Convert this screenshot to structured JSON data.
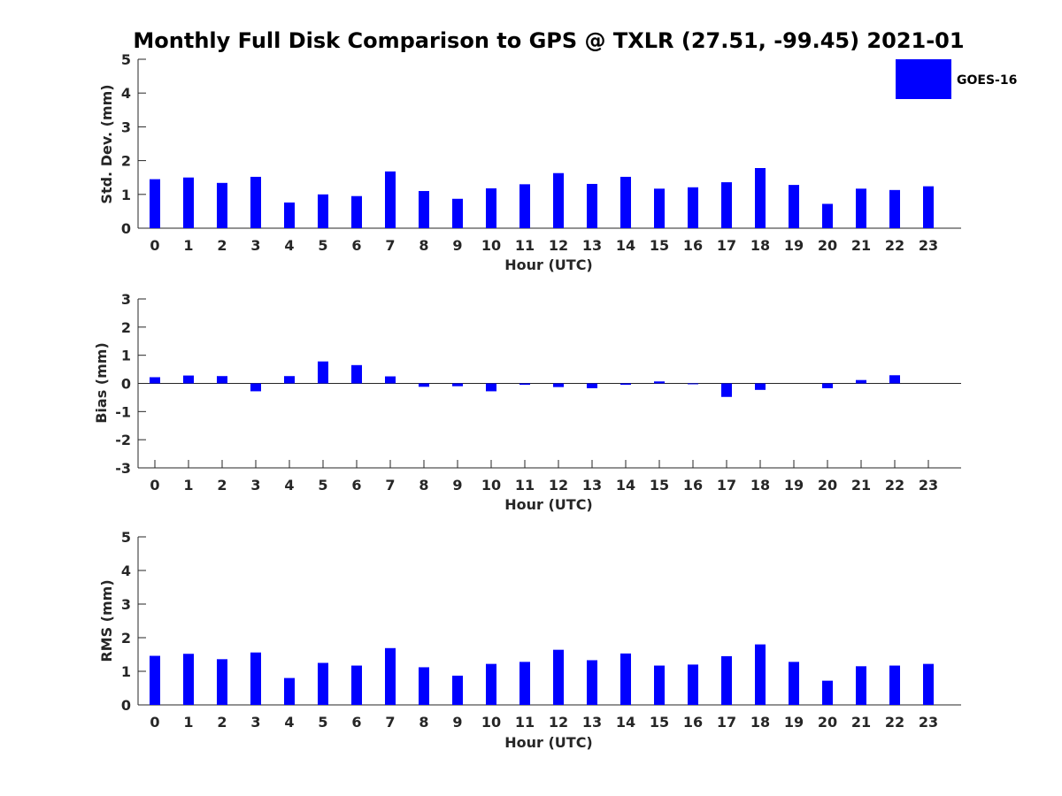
{
  "chart_data": {
    "title": "Monthly Full Disk Comparison to GPS @ TXLR (27.51, -99.45) 2021-01",
    "legend": {
      "entries": [
        "GOES-16"
      ],
      "placement": "top-right",
      "color": "#0000ff"
    },
    "bar_color": "#0000ff",
    "panels": [
      {
        "type": "bar",
        "xlabel": "Hour (UTC)",
        "ylabel": "Std. Dev. (mm)",
        "ylim": [
          0,
          5
        ],
        "yticks": [
          "0",
          "1",
          "2",
          "3",
          "4",
          "5"
        ],
        "grid": false,
        "categories": [
          "0",
          "1",
          "2",
          "3",
          "4",
          "5",
          "6",
          "7",
          "8",
          "9",
          "10",
          "11",
          "12",
          "13",
          "14",
          "15",
          "16",
          "17",
          "18",
          "19",
          "20",
          "21",
          "22",
          "23"
        ],
        "series": [
          {
            "name": "GOES-16",
            "values": [
              1.45,
              1.5,
              1.34,
              1.52,
              0.76,
              1.0,
              0.95,
              1.68,
              1.1,
              0.87,
              1.18,
              1.3,
              1.63,
              1.31,
              1.52,
              1.17,
              1.21,
              1.36,
              1.78,
              1.28,
              0.72,
              1.17,
              1.13,
              1.24
            ]
          }
        ]
      },
      {
        "type": "bar",
        "xlabel": "Hour (UTC)",
        "ylabel": "Bias (mm)",
        "ylim": [
          -3,
          3
        ],
        "yticks": [
          "-3",
          "-2",
          "-1",
          "0",
          "1",
          "2",
          "3"
        ],
        "grid": false,
        "categories": [
          "0",
          "1",
          "2",
          "3",
          "4",
          "5",
          "6",
          "7",
          "8",
          "9",
          "10",
          "11",
          "12",
          "13",
          "14",
          "15",
          "16",
          "17",
          "18",
          "19",
          "20",
          "21",
          "22",
          "23"
        ],
        "series": [
          {
            "name": "GOES-16",
            "values": [
              0.22,
              0.28,
              0.26,
              -0.28,
              0.26,
              0.78,
              0.65,
              0.25,
              -0.12,
              -0.1,
              -0.28,
              -0.05,
              -0.13,
              -0.17,
              -0.05,
              0.07,
              -0.01,
              -0.48,
              -0.23,
              0.0,
              -0.17,
              0.12,
              0.29,
              0.0
            ]
          }
        ]
      },
      {
        "type": "bar",
        "xlabel": "Hour (UTC)",
        "ylabel": "RMS (mm)",
        "ylim": [
          0,
          5
        ],
        "yticks": [
          "0",
          "1",
          "2",
          "3",
          "4",
          "5"
        ],
        "grid": false,
        "categories": [
          "0",
          "1",
          "2",
          "3",
          "4",
          "5",
          "6",
          "7",
          "8",
          "9",
          "10",
          "11",
          "12",
          "13",
          "14",
          "15",
          "16",
          "17",
          "18",
          "19",
          "20",
          "21",
          "22",
          "23"
        ],
        "series": [
          {
            "name": "GOES-16",
            "values": [
              1.46,
              1.52,
              1.36,
              1.56,
              0.8,
              1.25,
              1.17,
              1.69,
              1.12,
              0.87,
              1.22,
              1.28,
              1.64,
              1.33,
              1.53,
              1.17,
              1.2,
              1.45,
              1.8,
              1.28,
              0.72,
              1.15,
              1.17,
              1.22
            ]
          }
        ]
      }
    ]
  }
}
